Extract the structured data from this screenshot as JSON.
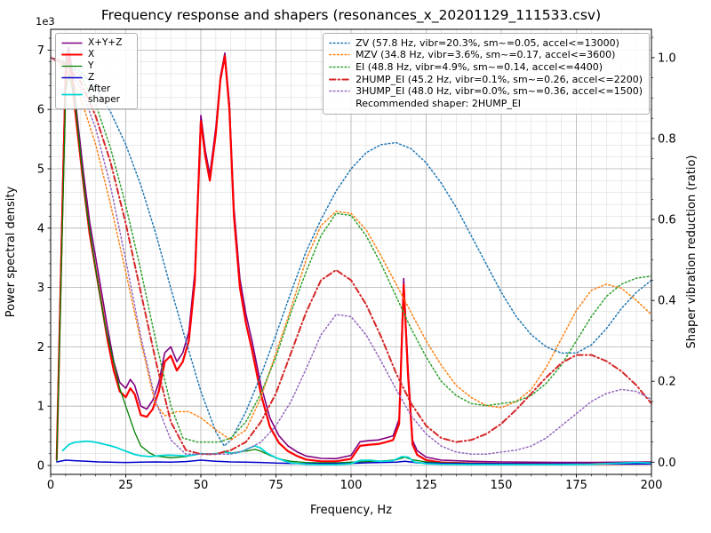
{
  "chart_data": {
    "type": "line",
    "title": "Frequency response and shapers (resonances_x_20201129_111533.csv)",
    "xlabel": "Frequency, Hz",
    "ylabel_left": "Power spectral density",
    "ylabel_right": "Shaper vibration reduction (ratio)",
    "offset_label": "1e3",
    "xlim": [
      0,
      200
    ],
    "ylim_left": [
      -150,
      7350
    ],
    "ylim_right": [
      -0.03,
      1.07
    ],
    "xticks": {
      "values": [
        0,
        25,
        50,
        75,
        100,
        125,
        150,
        175,
        200
      ],
      "labels": [
        "0",
        "25",
        "50",
        "75",
        "100",
        "125",
        "150",
        "175",
        "200"
      ],
      "minor_step": 5
    },
    "yticks_left": {
      "values": [
        0,
        1000,
        2000,
        3000,
        4000,
        5000,
        6000,
        7000
      ],
      "labels": [
        "0",
        "1",
        "2",
        "3",
        "4",
        "5",
        "6",
        "7"
      ],
      "minor_step": 200
    },
    "yticks_right": {
      "values": [
        0,
        0.2,
        0.4,
        0.6,
        0.8,
        1.0
      ],
      "labels": [
        "0.0",
        "0.2",
        "0.4",
        "0.6",
        "0.8",
        "1.0"
      ],
      "minor_step": 0.05
    },
    "grid": {
      "major_color": "#b0b0b0",
      "minor_color": "#dddddd"
    },
    "legend_note": "Recommended shaper: 2HUMP_EI",
    "psd_series": [
      {
        "name": "X+Y+Z",
        "color": "#800080",
        "style": "solid",
        "width": 1.6,
        "x": [
          2,
          4,
          5,
          6,
          7,
          9,
          11,
          13,
          15,
          17,
          19,
          21,
          23,
          25,
          26.5,
          28,
          30,
          32,
          34,
          36,
          38,
          40,
          42,
          44,
          46,
          48,
          50,
          51.5,
          53,
          55,
          56.5,
          58,
          59.5,
          61,
          63,
          65,
          67,
          70,
          73,
          76,
          79,
          82,
          85,
          90,
          95,
          100,
          103,
          106,
          109,
          112,
          114,
          116,
          117.5,
          119,
          120.5,
          122,
          125,
          130,
          140,
          150,
          160,
          170,
          180,
          190,
          200
        ],
        "y": [
          120,
          4700,
          6800,
          7050,
          6700,
          5800,
          4900,
          4100,
          3500,
          2900,
          2300,
          1750,
          1400,
          1300,
          1450,
          1350,
          1000,
          950,
          1100,
          1400,
          1900,
          2000,
          1750,
          1900,
          2250,
          3250,
          5900,
          5300,
          4900,
          5700,
          6550,
          6950,
          6100,
          4350,
          3150,
          2550,
          2100,
          1350,
          800,
          500,
          330,
          230,
          160,
          120,
          115,
          170,
          400,
          420,
          430,
          470,
          500,
          780,
          3150,
          1600,
          420,
          250,
          140,
          90,
          70,
          60,
          55,
          50,
          50,
          55,
          60
        ]
      },
      {
        "name": "X",
        "color": "#ff0000",
        "style": "solid",
        "width": 2.2,
        "x": [
          2,
          4,
          5,
          6,
          7,
          9,
          11,
          13,
          15,
          17,
          19,
          21,
          23,
          25,
          26.5,
          28,
          30,
          32,
          34,
          36,
          38,
          40,
          42,
          44,
          46,
          48,
          50,
          51.5,
          53,
          55,
          56.5,
          58,
          59.5,
          61,
          63,
          65,
          67,
          70,
          73,
          76,
          79,
          82,
          85,
          90,
          95,
          100,
          103,
          106,
          109,
          112,
          114,
          116,
          117.5,
          119,
          120.5,
          122,
          125,
          130,
          140,
          150,
          160,
          170,
          180,
          190,
          200
        ],
        "y": [
          100,
          4500,
          6600,
          6900,
          6500,
          5600,
          4700,
          3900,
          3300,
          2700,
          2100,
          1600,
          1250,
          1150,
          1300,
          1200,
          850,
          820,
          950,
          1250,
          1750,
          1850,
          1600,
          1750,
          2100,
          3100,
          5800,
          5200,
          4800,
          5600,
          6500,
          6900,
          6000,
          4200,
          3000,
          2400,
          1950,
          1200,
          650,
          380,
          240,
          160,
          100,
          70,
          70,
          110,
          330,
          350,
          360,
          400,
          430,
          700,
          3050,
          1500,
          350,
          180,
          90,
          50,
          35,
          30,
          28,
          25,
          25,
          28,
          30
        ]
      },
      {
        "name": "Y",
        "color": "#008000",
        "style": "solid",
        "width": 1.3,
        "x": [
          2,
          4,
          5,
          6,
          8,
          10,
          12,
          15,
          18,
          20,
          23,
          25,
          28,
          30,
          33,
          35,
          40,
          45,
          50,
          55,
          58,
          60,
          63,
          66,
          68,
          70,
          73,
          76,
          80,
          85,
          90,
          95,
          100,
          105,
          110,
          115,
          118,
          120,
          125,
          130,
          140,
          150,
          160,
          175,
          190,
          200
        ],
        "y": [
          80,
          4200,
          6300,
          6600,
          6200,
          5200,
          4300,
          3300,
          2400,
          1950,
          1300,
          1000,
          560,
          330,
          210,
          160,
          130,
          150,
          200,
          190,
          240,
          210,
          230,
          250,
          270,
          240,
          170,
          110,
          70,
          50,
          45,
          45,
          55,
          65,
          75,
          95,
          140,
          100,
          60,
          45,
          35,
          30,
          28,
          25,
          25,
          25
        ]
      },
      {
        "name": "Z",
        "color": "#0000cd",
        "style": "solid",
        "width": 1.5,
        "x": [
          2,
          5,
          8,
          12,
          16,
          20,
          25,
          30,
          35,
          40,
          45,
          50,
          55,
          60,
          65,
          70,
          75,
          80,
          85,
          90,
          95,
          100,
          105,
          110,
          115,
          118,
          122,
          130,
          140,
          150,
          160,
          170,
          180,
          190,
          200
        ],
        "y": [
          60,
          90,
          80,
          70,
          60,
          55,
          50,
          55,
          60,
          55,
          65,
          90,
          70,
          60,
          55,
          50,
          40,
          35,
          30,
          30,
          30,
          35,
          45,
          50,
          55,
          70,
          45,
          35,
          30,
          30,
          28,
          28,
          26,
          25,
          25
        ]
      },
      {
        "name": "After shaper",
        "color": "#00d5d5",
        "style": "solid",
        "width": 1.8,
        "x": [
          4,
          6,
          8,
          10,
          12,
          14,
          16,
          18,
          20,
          22,
          25,
          28,
          30,
          33,
          36,
          39,
          42,
          45,
          48,
          50,
          53,
          56,
          58,
          60,
          62,
          64,
          66,
          68,
          70,
          72,
          75,
          78,
          80,
          85,
          90,
          95,
          100,
          103,
          106,
          110,
          114,
          117,
          119,
          121,
          125,
          130,
          140,
          150,
          160,
          170,
          180,
          190,
          195,
          200
        ],
        "y": [
          250,
          350,
          390,
          400,
          410,
          400,
          380,
          355,
          330,
          300,
          240,
          185,
          165,
          150,
          165,
          175,
          170,
          160,
          180,
          200,
          190,
          205,
          225,
          205,
          215,
          240,
          290,
          330,
          290,
          210,
          130,
          75,
          45,
          20,
          15,
          15,
          30,
          85,
          90,
          70,
          80,
          150,
          140,
          60,
          30,
          20,
          15,
          15,
          15,
          15,
          20,
          40,
          50,
          40
        ]
      }
    ],
    "shaper_series": [
      {
        "name": "ZV",
        "label": "ZV (57.8 Hz, vibr=20.3%, sm~=0.05, accel<=13000)",
        "color": "#1f77b4",
        "style": "dotted",
        "width": 1.5,
        "x": [
          0,
          5,
          10,
          15,
          20,
          25,
          30,
          35,
          40,
          45,
          50,
          55,
          57.8,
          60,
          65,
          70,
          75,
          80,
          85,
          90,
          95,
          100,
          105,
          110,
          115,
          120,
          125,
          130,
          135,
          140,
          145,
          150,
          155,
          160,
          165,
          170,
          175,
          180,
          185,
          190,
          195,
          200
        ],
        "y": [
          1.0,
          0.99,
          0.965,
          0.925,
          0.865,
          0.785,
          0.685,
          0.565,
          0.43,
          0.3,
          0.175,
          0.075,
          0.04,
          0.055,
          0.125,
          0.215,
          0.315,
          0.42,
          0.52,
          0.6,
          0.67,
          0.725,
          0.765,
          0.785,
          0.79,
          0.775,
          0.74,
          0.69,
          0.63,
          0.56,
          0.49,
          0.42,
          0.36,
          0.315,
          0.285,
          0.27,
          0.27,
          0.29,
          0.33,
          0.38,
          0.42,
          0.45
        ]
      },
      {
        "name": "MZV",
        "label": "MZV (34.8 Hz, vibr=3.6%, sm~=0.17, accel<=3600)",
        "color": "#ff7f0e",
        "style": "dotted",
        "width": 1.5,
        "x": [
          0,
          5,
          10,
          15,
          20,
          25,
          30,
          34.8,
          38,
          42,
          46,
          50,
          55,
          60,
          65,
          70,
          75,
          80,
          85,
          90,
          95,
          100,
          105,
          110,
          115,
          120,
          125,
          130,
          135,
          140,
          145,
          150,
          155,
          160,
          165,
          170,
          175,
          180,
          185,
          190,
          195,
          200
        ],
        "y": [
          1.0,
          0.975,
          0.9,
          0.785,
          0.635,
          0.47,
          0.3,
          0.145,
          0.115,
          0.125,
          0.125,
          0.11,
          0.08,
          0.055,
          0.08,
          0.16,
          0.27,
          0.38,
          0.5,
          0.585,
          0.62,
          0.615,
          0.575,
          0.51,
          0.44,
          0.37,
          0.3,
          0.24,
          0.19,
          0.16,
          0.14,
          0.135,
          0.15,
          0.18,
          0.235,
          0.305,
          0.375,
          0.425,
          0.44,
          0.43,
          0.4,
          0.365
        ]
      },
      {
        "name": "EI",
        "label": "EI (48.8 Hz, vibr=4.9%, sm~=0.14, accel<=4400)",
        "color": "#2ca02c",
        "style": "dotted",
        "width": 1.5,
        "x": [
          0,
          5,
          10,
          15,
          20,
          25,
          30,
          35,
          40,
          44,
          48.8,
          52,
          56,
          60,
          65,
          70,
          75,
          80,
          85,
          90,
          95,
          100,
          105,
          110,
          115,
          120,
          125,
          130,
          135,
          140,
          145,
          150,
          155,
          160,
          165,
          170,
          175,
          180,
          185,
          190,
          195,
          200
        ],
        "y": [
          1.0,
          0.99,
          0.955,
          0.885,
          0.775,
          0.635,
          0.475,
          0.3,
          0.14,
          0.06,
          0.05,
          0.05,
          0.05,
          0.06,
          0.1,
          0.17,
          0.26,
          0.37,
          0.47,
          0.56,
          0.615,
          0.61,
          0.56,
          0.49,
          0.41,
          0.33,
          0.26,
          0.2,
          0.165,
          0.145,
          0.14,
          0.145,
          0.15,
          0.165,
          0.195,
          0.24,
          0.3,
          0.36,
          0.41,
          0.44,
          0.455,
          0.46
        ]
      },
      {
        "name": "2HUMP_EI",
        "label": "2HUMP_EI (45.2 Hz, vibr=0.1%, sm~=0.26, accel<=2200)",
        "color": "#d62728",
        "style": "dashdot",
        "width": 2.0,
        "x": [
          0,
          5,
          10,
          15,
          20,
          25,
          30,
          35,
          40,
          45,
          50,
          55,
          60,
          65,
          70,
          75,
          80,
          85,
          90,
          95,
          100,
          105,
          110,
          115,
          120,
          125,
          130,
          135,
          140,
          145,
          150,
          155,
          160,
          165,
          170,
          175,
          180,
          185,
          190,
          195,
          200
        ],
        "y": [
          1.0,
          0.985,
          0.94,
          0.855,
          0.74,
          0.59,
          0.42,
          0.25,
          0.1,
          0.03,
          0.02,
          0.02,
          0.03,
          0.05,
          0.1,
          0.17,
          0.27,
          0.37,
          0.45,
          0.475,
          0.45,
          0.39,
          0.31,
          0.22,
          0.145,
          0.09,
          0.06,
          0.05,
          0.055,
          0.07,
          0.095,
          0.13,
          0.17,
          0.21,
          0.245,
          0.265,
          0.265,
          0.25,
          0.225,
          0.19,
          0.145
        ]
      },
      {
        "name": "3HUMP_EI",
        "label": "3HUMP_EI (48.0 Hz, vibr=0.0%, sm~=0.36, accel<=1500)",
        "color": "#9467bd",
        "style": "dotted",
        "width": 1.5,
        "x": [
          0,
          5,
          10,
          15,
          20,
          25,
          30,
          35,
          40,
          45,
          50,
          55,
          60,
          65,
          70,
          75,
          80,
          85,
          90,
          95,
          100,
          105,
          110,
          115,
          120,
          125,
          130,
          135,
          140,
          145,
          150,
          155,
          160,
          165,
          170,
          175,
          180,
          185,
          190,
          195,
          200
        ],
        "y": [
          1.0,
          0.98,
          0.925,
          0.825,
          0.68,
          0.5,
          0.31,
          0.15,
          0.055,
          0.02,
          0.02,
          0.02,
          0.02,
          0.03,
          0.05,
          0.09,
          0.15,
          0.23,
          0.315,
          0.365,
          0.36,
          0.315,
          0.25,
          0.18,
          0.115,
          0.07,
          0.04,
          0.025,
          0.02,
          0.02,
          0.025,
          0.03,
          0.04,
          0.06,
          0.09,
          0.12,
          0.15,
          0.17,
          0.18,
          0.175,
          0.155
        ]
      }
    ]
  }
}
